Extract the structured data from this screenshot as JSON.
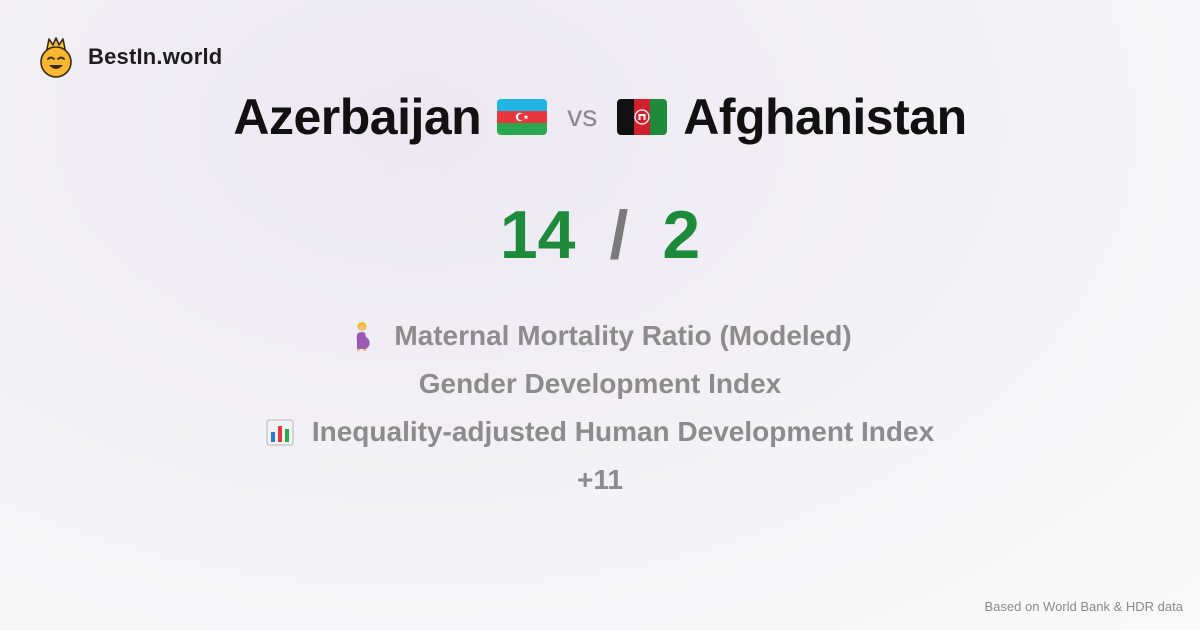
{
  "brand": {
    "name": "BestIn.world",
    "logo_icon": "smiling-crown-face-icon"
  },
  "comparison": {
    "left_country": "Azerbaijan",
    "left_flag_icon": "azerbaijan-flag-icon",
    "vs_label": "vs",
    "right_country": "Afghanistan",
    "right_flag_icon": "afghanistan-flag-icon"
  },
  "score": {
    "left": "14",
    "separator": "/",
    "right": "2",
    "color": "#1d8a3c"
  },
  "metrics": [
    {
      "icon": "pregnant-woman-icon",
      "label": "Maternal Mortality Ratio (Modeled)"
    },
    {
      "icon": "",
      "label": "Gender Development Index"
    },
    {
      "icon": "bar-chart-icon",
      "label": "Inequality-adjusted Human Development Index"
    }
  ],
  "more_label": "+11",
  "footer": {
    "source": "Based on World Bank & HDR data"
  }
}
